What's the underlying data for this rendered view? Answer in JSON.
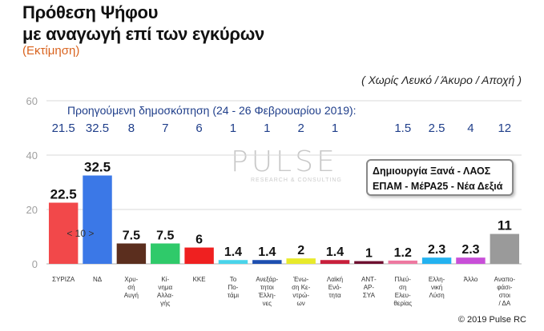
{
  "title_line1": "Πρόθεση Ψήφου",
  "title_line2": "με αναγωγή επί των εγκύρων",
  "estimate_label": "(Εκτίμηση)",
  "note": "( Χωρίς Λευκό / Άκυρο / Αποχή )",
  "previous_poll_label": "Προηγούμενη δημοσκόπηση (24 - 26 Φεβρουαρίου 2019):",
  "legend_line1": "Δημιουργία Ξανά - ΛΑΟΣ",
  "legend_line2": "ΕΠΑΜ - ΜέΡΑ25 - Νέα Δεξιά",
  "watermark": "PULSE",
  "watermark_sub": "RESEARCH & CONSULTING",
  "credit": "© 2019 Pulse RC",
  "gap_label": "< 10 >",
  "chart_data": {
    "type": "bar",
    "title": "Πρόθεση Ψήφου με αναγωγή επί των εγκύρων",
    "ylim": [
      0,
      60
    ],
    "yticks": [
      0,
      20,
      40,
      60
    ],
    "grid": true,
    "categories": [
      [
        "ΣΥΡΙΖΑ"
      ],
      [
        "ΝΔ"
      ],
      [
        "Χρυ-",
        "σή",
        "Αυγή"
      ],
      [
        "Κί-",
        "νημα",
        "Αλλα-",
        "γής"
      ],
      [
        "ΚΚΕ"
      ],
      [
        "Το",
        "Πο-",
        "τάμι"
      ],
      [
        "Ανεξάρ-",
        "τητοι",
        "Έλλη-",
        "νες"
      ],
      [
        "Ένω-",
        "ση Κε-",
        "ντρώ-",
        "ων"
      ],
      [
        "Λαϊκή",
        "Ενό-",
        "τητα"
      ],
      [
        "ΑΝΤ-",
        "ΑΡ-",
        "ΣΥΑ"
      ],
      [
        "Πλεύ-",
        "ση",
        "Ελευ-",
        "θερίας"
      ],
      [
        "Ελλη-",
        "νική",
        "Λύση"
      ],
      [
        "Άλλο"
      ],
      [
        "Αναπο-",
        "φάσι-",
        "στοι",
        "/ ΔΑ"
      ]
    ],
    "values": [
      22.5,
      32.5,
      7.5,
      7.5,
      6,
      1.4,
      1.4,
      2,
      1.4,
      1,
      1.2,
      2.3,
      2.3,
      11
    ],
    "value_labels": [
      "22.5",
      "32.5",
      "7.5",
      "7.5",
      "6",
      "1.4",
      "1.4",
      "2",
      "1.4",
      "1",
      "1.2",
      "2.3",
      "2.3",
      "11"
    ],
    "previous_values": [
      "21.5",
      "32.5",
      "8",
      "7",
      "6",
      "1",
      "1",
      "2",
      "1",
      "",
      "1.5",
      "2.5",
      "4",
      "12"
    ],
    "colors": [
      "#f2484a",
      "#3b78e7",
      "#5b2e1e",
      "#2fca6a",
      "#ef2020",
      "#49d4ea",
      "#1e4fb0",
      "#e8ea2a",
      "#c8203c",
      "#6e1030",
      "#ee78a0",
      "#23b2f0",
      "#c84fd8",
      "#9a9a9a"
    ]
  }
}
